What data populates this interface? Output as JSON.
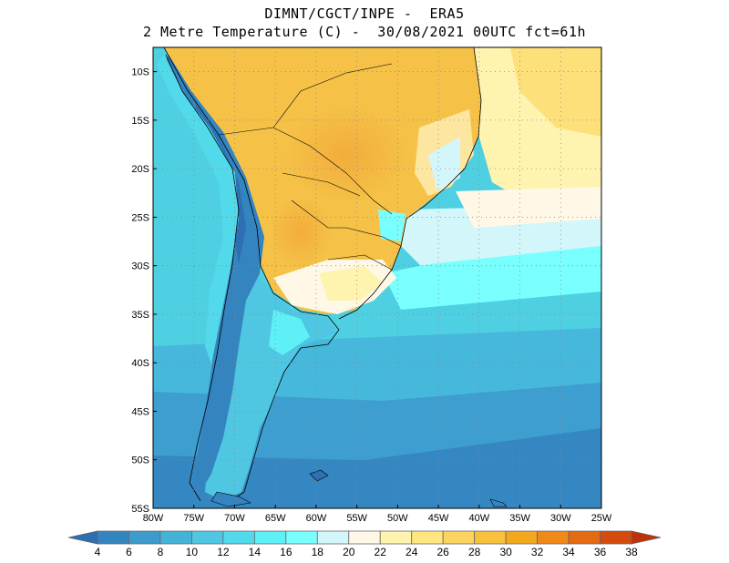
{
  "title": {
    "line1": "DIMNT/CGCT/INPE -  ERA5",
    "line2": "2 Metre Temperature (C) -  30/08/2021 00UTC fct=61h"
  },
  "map": {
    "lat_labels": [
      "10S",
      "15S",
      "20S",
      "25S",
      "30S",
      "35S",
      "40S",
      "45S",
      "50S",
      "55S"
    ],
    "lon_labels": [
      "80W",
      "75W",
      "70W",
      "65W",
      "60W",
      "55W",
      "50W",
      "45W",
      "40W",
      "35W",
      "30W",
      "25W"
    ],
    "lat_range": [
      -55,
      -7.5
    ],
    "lon_range": [
      -80,
      -25
    ],
    "grid": true,
    "ocean_color": "#4fd0e2",
    "land_color": "#f5c247"
  },
  "colorbar": {
    "labels": [
      "4",
      "6",
      "8",
      "10",
      "12",
      "14",
      "16",
      "18",
      "20",
      "22",
      "24",
      "26",
      "28",
      "30",
      "32",
      "34",
      "36",
      "38"
    ],
    "colors": [
      "#2c6fb2",
      "#3484c0",
      "#3d9bcc",
      "#45b2d8",
      "#4fc7e2",
      "#52d9ea",
      "#5ff0f5",
      "#7affff",
      "#d3f6fb",
      "#fff8e6",
      "#fff3b0",
      "#ffe680",
      "#fdd460",
      "#f8c13c",
      "#f4a81e",
      "#ef8a1a",
      "#e46a14",
      "#d44b0e",
      "#c0300a"
    ]
  }
}
